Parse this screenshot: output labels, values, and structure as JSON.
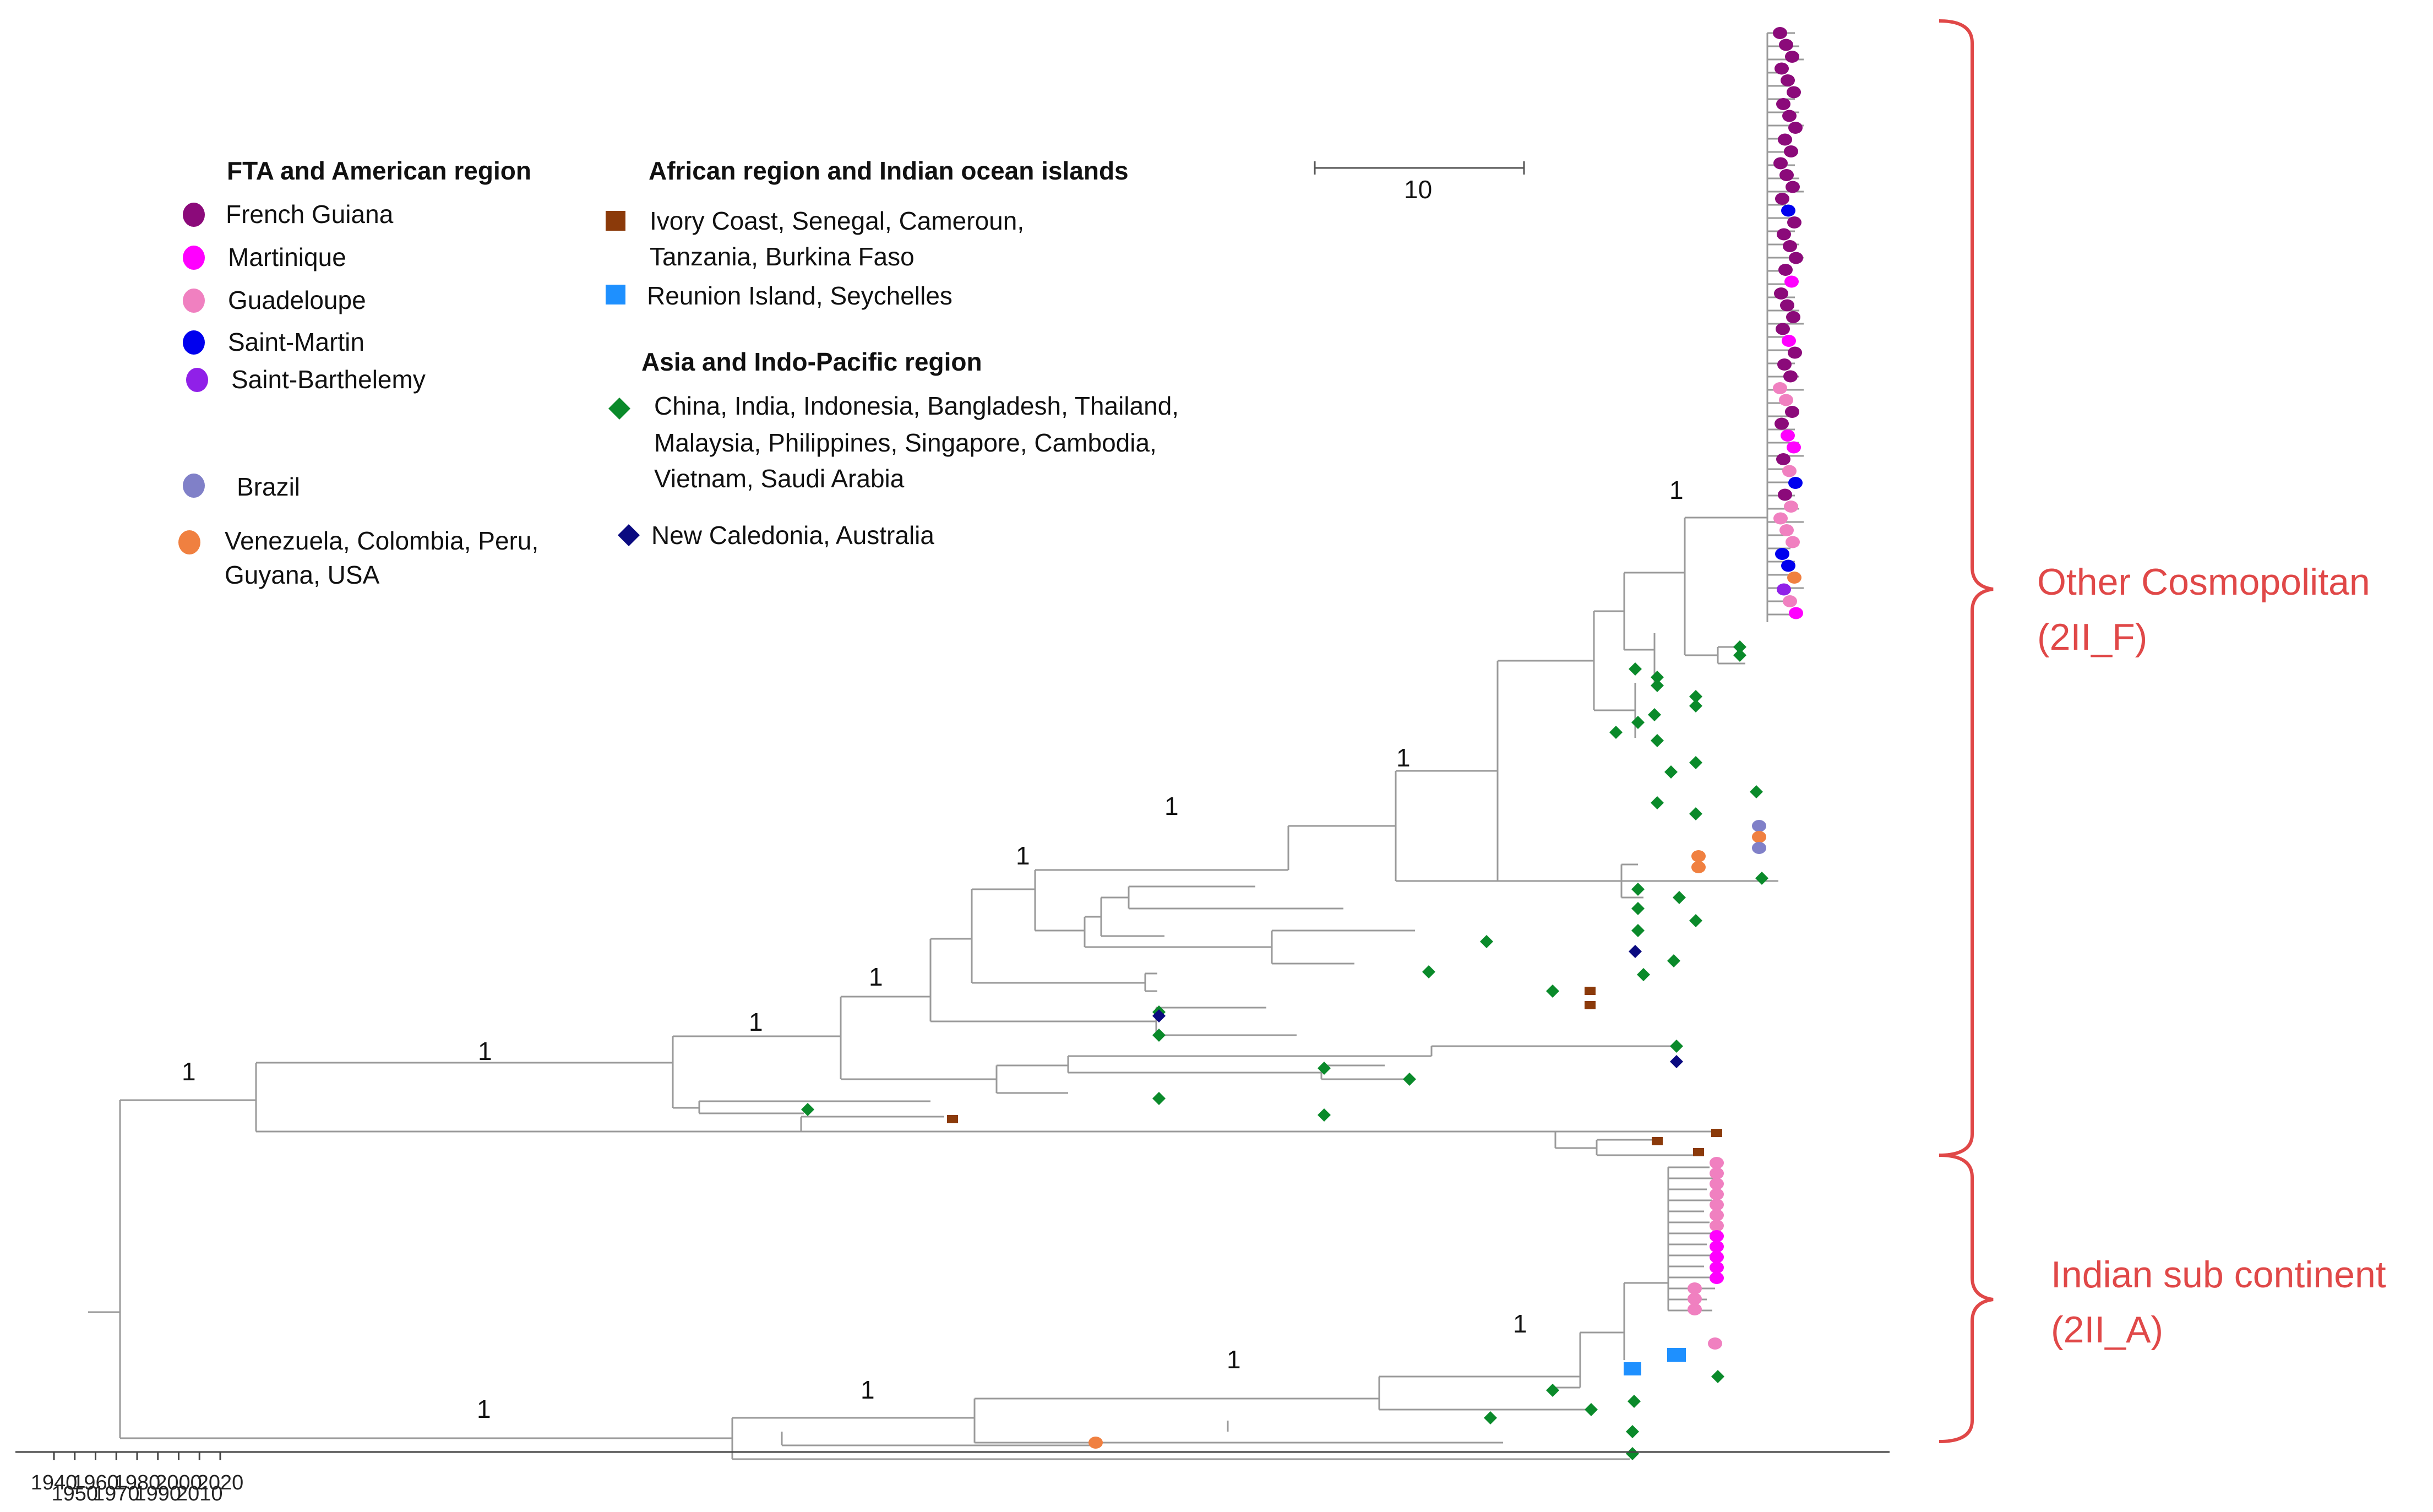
{
  "legend": {
    "american": {
      "heading": "FTA and American region",
      "items": [
        {
          "label": "French Guiana",
          "color": "#8b0a7a",
          "shape": "circle"
        },
        {
          "label": "Martinique",
          "color": "#ff00ff",
          "shape": "circle"
        },
        {
          "label": "Guadeloupe",
          "color": "#f080c0",
          "shape": "circle"
        },
        {
          "label": "Saint-Martin",
          "color": "#0000ee",
          "shape": "circle"
        },
        {
          "label": "Saint-Barthelemy",
          "color": "#9020e8",
          "shape": "circle"
        },
        {
          "label": "Brazil",
          "color": "#8080c8",
          "shape": "circle"
        },
        {
          "label": "Venezuela,  Colombia, Peru,",
          "label2": "Guyana, USA",
          "color": "#f08040",
          "shape": "circle"
        }
      ]
    },
    "african": {
      "heading": "African region and Indian ocean islands",
      "items": [
        {
          "label": "Ivory Coast, Senegal, Cameroun,",
          "label2": "Tanzania, Burkina Faso",
          "color": "#8b3a0a",
          "shape": "square"
        },
        {
          "label": "Reunion Island, Seychelles",
          "color": "#1e90ff",
          "shape": "square"
        }
      ]
    },
    "asia": {
      "heading": "Asia and Indo-Pacific region",
      "items": [
        {
          "label": "China,   India,   Indonesia,   Bangladesh,  Thailand,",
          "label2": "Malaysia,    Philippines,    Singapore,    Cambodia,",
          "label3": "Vietnam, Saudi Arabia",
          "color": "#0a8a2a",
          "shape": "diamond"
        },
        {
          "label": "New Caledonia, Australia",
          "color": "#0a0a80",
          "shape": "diamond"
        }
      ]
    }
  },
  "scale_bar": {
    "label": "10"
  },
  "axis": {
    "ticks": [
      "1940",
      "1950",
      "1960",
      "1970",
      "1980",
      "1990",
      "2000",
      "2010",
      "2020"
    ]
  },
  "support_values": [
    "1",
    "1",
    "1",
    "1",
    "1",
    "1",
    "1",
    "1",
    "1",
    "1",
    "1",
    "1"
  ],
  "clades": [
    {
      "line1": "Other Cosmopolitan",
      "line2": "(2II_F)"
    },
    {
      "line1": "Indian sub continent",
      "line2": "(2II_A)"
    }
  ],
  "colors": {
    "french_guiana": "#8b0a7a",
    "martinique": "#ff00ff",
    "guadeloupe": "#f080c0",
    "saint_martin": "#0000ee",
    "saint_barthelemy": "#9020e8",
    "brazil": "#8080c8",
    "venezuela": "#f08040",
    "africa": "#8b3a0a",
    "reunion": "#1e90ff",
    "asia": "#0a8a2a",
    "new_caledonia": "#0a0a80",
    "clade": "#e04848"
  }
}
